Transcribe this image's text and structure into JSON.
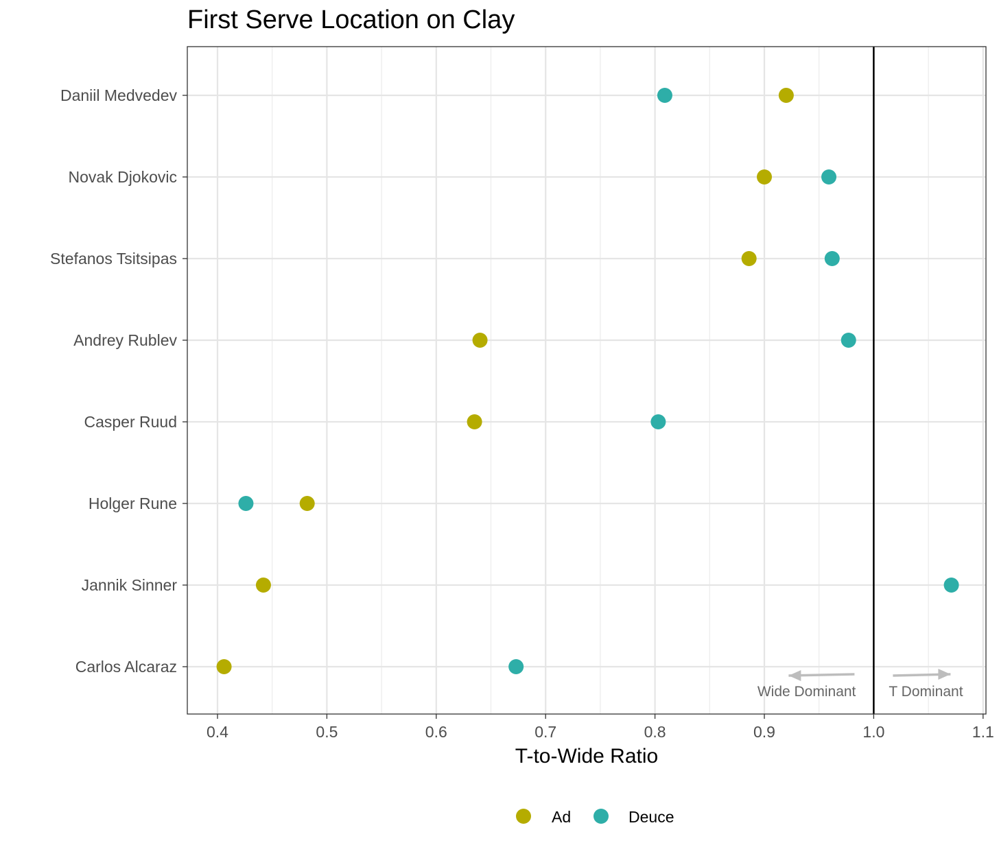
{
  "chart_data": {
    "type": "scatter",
    "title": "First Serve Location on Clay",
    "xlabel": "T-to-Wide Ratio",
    "ylabel": "",
    "xlim": [
      0.373,
      1.1
    ],
    "x_ticks": [
      "0.4",
      "0.5",
      "0.6",
      "0.7",
      "0.8",
      "0.9",
      "1.0",
      "1.1"
    ],
    "grid": true,
    "reference_line_x": 1.0,
    "categories": [
      "Daniil Medvedev",
      "Novak Djokovic",
      "Stefanos Tsitsipas",
      "Andrey Rublev",
      "Casper Ruud",
      "Holger Rune",
      "Jannik Sinner",
      "Carlos Alcaraz"
    ],
    "series": [
      {
        "name": "Ad",
        "color": "#b5ac00",
        "values": [
          0.92,
          0.9,
          0.886,
          0.64,
          0.635,
          0.482,
          0.442,
          0.406
        ]
      },
      {
        "name": "Deuce",
        "color": "#2eaea8",
        "values": [
          0.809,
          0.959,
          0.962,
          0.977,
          0.803,
          0.426,
          1.071,
          0.673
        ]
      }
    ],
    "annotations": [
      {
        "text": "Wide Dominant",
        "direction": "left"
      },
      {
        "text": "T Dominant",
        "direction": "right"
      }
    ],
    "legend": {
      "position": "bottom",
      "entries": [
        "Ad",
        "Deuce"
      ]
    }
  }
}
